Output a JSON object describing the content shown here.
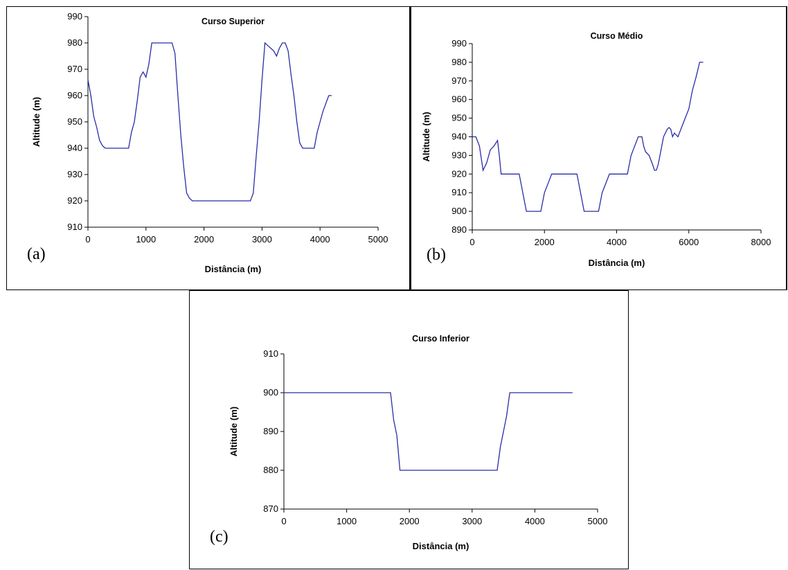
{
  "chart_data": [
    {
      "type": "line",
      "panel_label": "(a)",
      "title": "Curso Superior",
      "xlabel": "Distância (m)",
      "ylabel": "Altitude (m)",
      "xlim": [
        0,
        5000
      ],
      "ylim": [
        910,
        990
      ],
      "xticks": [
        0,
        1000,
        2000,
        3000,
        4000,
        5000
      ],
      "yticks": [
        910,
        920,
        930,
        940,
        950,
        960,
        970,
        980,
        990
      ],
      "grid": false,
      "legend": "none",
      "line_color": "#2b2ba8",
      "series": [
        {
          "x": [
            0,
            50,
            100,
            150,
            200,
            250,
            300,
            350,
            700,
            750,
            800,
            850,
            900,
            950,
            1000,
            1050,
            1100,
            1450,
            1500,
            1550,
            1600,
            1650,
            1700,
            1750,
            1800,
            2800,
            2850,
            2900,
            2950,
            3000,
            3050,
            3100,
            3150,
            3200,
            3250,
            3300,
            3350,
            3400,
            3450,
            3500,
            3550,
            3600,
            3650,
            3700,
            3900,
            3950,
            4000,
            4050,
            4100,
            4150,
            4200
          ],
          "y": [
            966,
            960,
            952,
            948,
            943,
            941,
            940,
            940,
            940,
            946,
            950,
            958,
            967,
            969,
            967,
            972,
            980,
            980,
            976,
            960,
            945,
            933,
            923,
            921,
            920,
            920,
            923,
            937,
            950,
            966,
            980,
            979,
            978,
            977,
            975,
            978,
            980,
            980,
            977,
            968,
            960,
            950,
            942,
            940,
            940,
            946,
            950,
            954,
            957,
            960,
            960
          ]
        }
      ]
    },
    {
      "type": "line",
      "panel_label": "(b)",
      "title": "Curso Médio",
      "xlabel": "Distância (m)",
      "ylabel": "Altitude (m)",
      "xlim": [
        0,
        8000
      ],
      "ylim": [
        890,
        990
      ],
      "xticks": [
        0,
        2000,
        4000,
        6000,
        8000
      ],
      "yticks": [
        890,
        900,
        910,
        920,
        930,
        940,
        950,
        960,
        970,
        980,
        990
      ],
      "grid": false,
      "legend": "none",
      "line_color": "#2b2ba8",
      "series": [
        {
          "x": [
            0,
            100,
            200,
            300,
            400,
            500,
            600,
            700,
            750,
            800,
            900,
            1300,
            1400,
            1500,
            1900,
            2000,
            2100,
            2200,
            2900,
            3000,
            3100,
            3500,
            3600,
            3700,
            3800,
            4300,
            4400,
            4500,
            4600,
            4700,
            4750,
            4800,
            4900,
            5000,
            5050,
            5100,
            5150,
            5200,
            5300,
            5400,
            5450,
            5500,
            5550,
            5600,
            5700,
            5800,
            5900,
            6000,
            6100,
            6200,
            6300,
            6400
          ],
          "y": [
            940,
            940,
            935,
            922,
            926,
            933,
            935,
            938,
            930,
            920,
            920,
            920,
            910,
            900,
            900,
            910,
            915,
            920,
            920,
            910,
            900,
            900,
            910,
            915,
            920,
            920,
            930,
            935,
            940,
            940,
            935,
            932,
            930,
            925,
            922,
            922,
            925,
            930,
            940,
            944,
            945,
            944,
            940,
            942,
            940,
            945,
            950,
            955,
            965,
            972,
            980,
            980
          ]
        }
      ]
    },
    {
      "type": "line",
      "panel_label": "(c)",
      "title": "Curso Inferior",
      "xlabel": "Distância (m)",
      "ylabel": "Altitude (m)",
      "xlim": [
        0,
        5000
      ],
      "ylim": [
        870,
        910
      ],
      "xticks": [
        0,
        1000,
        2000,
        3000,
        4000,
        5000
      ],
      "yticks": [
        870,
        880,
        890,
        900,
        910
      ],
      "grid": false,
      "legend": "none",
      "line_color": "#2b2ba8",
      "series": [
        {
          "x": [
            0,
            1700,
            1750,
            1800,
            1850,
            1900,
            3400,
            3450,
            3500,
            3550,
            3600,
            4600
          ],
          "y": [
            900,
            900,
            893,
            889,
            880,
            880,
            880,
            886,
            890,
            894,
            900,
            900
          ]
        }
      ]
    }
  ]
}
